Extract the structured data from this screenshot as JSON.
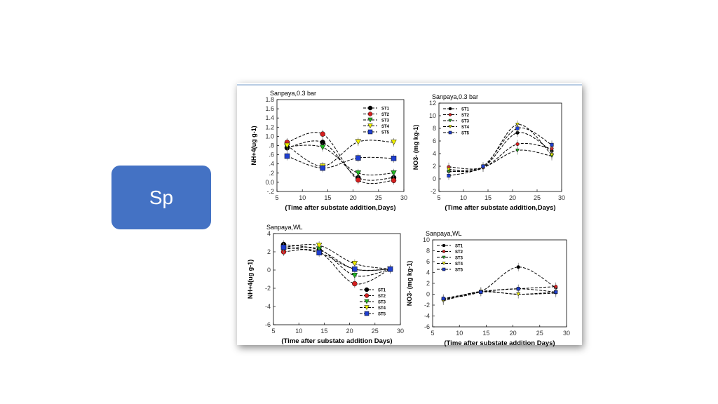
{
  "slide": {
    "box_label": "Sp",
    "box_color": "#4472c4"
  },
  "series_style": [
    {
      "name": "ST1",
      "marker": "circle",
      "color": "#000000"
    },
    {
      "name": "ST2",
      "marker": "circle",
      "color": "#d42020"
    },
    {
      "name": "ST3",
      "marker": "triangle-down",
      "color": "#22b522"
    },
    {
      "name": "ST4",
      "marker": "triangle-down",
      "color": "#f0f000"
    },
    {
      "name": "ST5",
      "marker": "square",
      "color": "#1f3fd0"
    }
  ],
  "chart_data": [
    {
      "type": "line",
      "title": "Sanpaya,0.3 bar",
      "xlabel": "(Time after substate addition,Days)",
      "ylabel": "NH+4(ug g-1)",
      "xlim": [
        5,
        30
      ],
      "ylim": [
        -0.2,
        1.8
      ],
      "xticks": [
        "5",
        "10",
        "15",
        "20",
        "25",
        "30"
      ],
      "yticks": [
        "1.8",
        "1.6",
        "1.4",
        "1.2",
        "1.0",
        ".8",
        ".6",
        ".4",
        ".2",
        "0.0",
        "-.2"
      ],
      "legend": "top-right",
      "x": [
        7,
        14,
        21,
        28
      ],
      "series": [
        {
          "name": "ST1",
          "values": [
            0.75,
            0.87,
            0.1,
            0.1
          ]
        },
        {
          "name": "ST2",
          "values": [
            0.87,
            1.05,
            0.05,
            0.04
          ]
        },
        {
          "name": "ST3",
          "values": [
            0.78,
            0.76,
            0.2,
            0.2
          ]
        },
        {
          "name": "ST4",
          "values": [
            0.8,
            0.35,
            0.88,
            0.87
          ]
        },
        {
          "name": "ST5",
          "values": [
            0.57,
            0.31,
            0.53,
            0.52
          ]
        }
      ]
    },
    {
      "type": "line",
      "title": "Sanpaya,0.3 bar",
      "xlabel": "(Time after substate addition,Days)",
      "ylabel": "NO3- (mg kg-1)",
      "xlim": [
        5,
        30
      ],
      "ylim": [
        -2,
        12
      ],
      "xticks": [
        "5",
        "10",
        "15",
        "20",
        "25",
        "30"
      ],
      "yticks": [
        "12",
        "10",
        "8",
        "6",
        "4",
        "2",
        "0",
        "-2"
      ],
      "legend": "top-left",
      "x": [
        7,
        14,
        21,
        28
      ],
      "series": [
        {
          "name": "ST1",
          "values": [
            1.2,
            1.8,
            7.3,
            4.4
          ]
        },
        {
          "name": "ST2",
          "values": [
            1.9,
            1.8,
            5.5,
            4.8
          ]
        },
        {
          "name": "ST3",
          "values": [
            1.1,
            1.8,
            4.5,
            3.6
          ]
        },
        {
          "name": "ST4",
          "values": [
            1.5,
            1.8,
            8.6,
            3.8
          ]
        },
        {
          "name": "ST5",
          "values": [
            0.5,
            2.0,
            8.0,
            5.4
          ]
        }
      ]
    },
    {
      "type": "line",
      "title": "Sanpaya,WL",
      "xlabel": "(Time after substate addition Days)",
      "ylabel": "NH+4(ug g-1)",
      "xlim": [
        5,
        30
      ],
      "ylim": [
        -6,
        4
      ],
      "xticks": [
        "5",
        "10",
        "15",
        "20",
        "25",
        "30"
      ],
      "yticks": [
        "4",
        "2",
        "0",
        "-2",
        "-4",
        "-6"
      ],
      "legend": "bottom-right",
      "x": [
        7,
        14,
        21,
        28
      ],
      "series": [
        {
          "name": "ST1",
          "values": [
            2.8,
            2.2,
            0.1,
            0.1
          ]
        },
        {
          "name": "ST2",
          "values": [
            2.0,
            2.0,
            -1.5,
            0.1
          ]
        },
        {
          "name": "ST3",
          "values": [
            2.3,
            2.3,
            -0.6,
            0.1
          ]
        },
        {
          "name": "ST4",
          "values": [
            2.5,
            2.7,
            0.7,
            0.1
          ]
        },
        {
          "name": "ST5",
          "values": [
            2.5,
            1.9,
            0.1,
            0.1
          ]
        }
      ]
    },
    {
      "type": "line",
      "title": "Sanpaya,WL",
      "xlabel": "(Time after substate addition Days)",
      "ylabel": "NO3- (mg kg-1)",
      "xlim": [
        5,
        30
      ],
      "ylim": [
        -6,
        10
      ],
      "xticks": [
        "5",
        "10",
        "15",
        "20",
        "25",
        "30"
      ],
      "yticks": [
        "10",
        "8",
        "6",
        "4",
        "2",
        "0",
        "-2",
        "-4",
        "-6"
      ],
      "legend": "top-left",
      "x": [
        7,
        14,
        21,
        28
      ],
      "series": [
        {
          "name": "ST1",
          "values": [
            -0.8,
            0.5,
            5.0,
            1.2
          ]
        },
        {
          "name": "ST2",
          "values": [
            -1.0,
            0.5,
            1.0,
            1.4
          ]
        },
        {
          "name": "ST3",
          "values": [
            -1.2,
            0.4,
            0.0,
            0.2
          ]
        },
        {
          "name": "ST4",
          "values": [
            -1.2,
            0.5,
            0.0,
            0.4
          ]
        },
        {
          "name": "ST5",
          "values": [
            -0.8,
            0.4,
            1.0,
            0.4
          ]
        }
      ]
    }
  ]
}
